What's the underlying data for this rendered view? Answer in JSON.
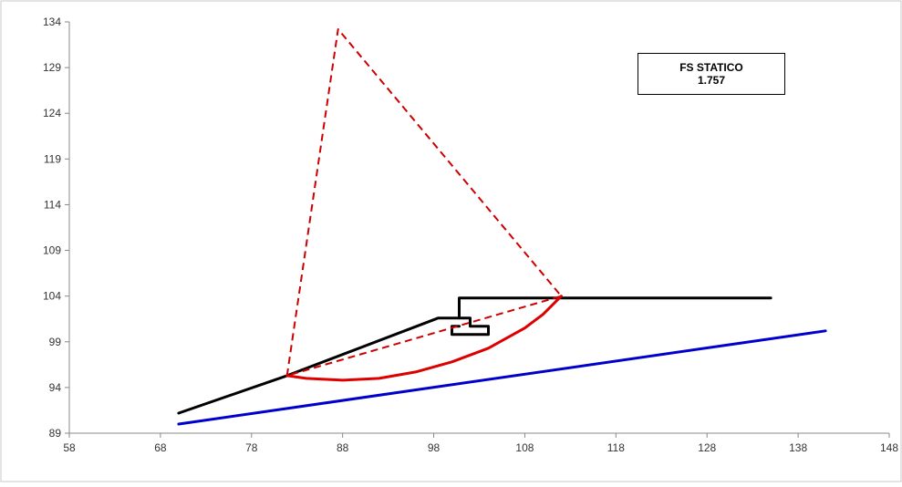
{
  "chart_data": {
    "type": "line",
    "title": "",
    "xlabel": "",
    "ylabel": "",
    "xlim": [
      58,
      148
    ],
    "ylim": [
      89,
      134
    ],
    "x_ticks": [
      58,
      68,
      78,
      88,
      98,
      108,
      118,
      128,
      138,
      148
    ],
    "y_ticks": [
      89,
      94,
      99,
      104,
      109,
      114,
      119,
      124,
      129,
      134
    ],
    "grid": false,
    "legend": "none",
    "annotation": {
      "line1": "FS  STATICO",
      "line2": "1.757"
    },
    "series": [
      {
        "color": "#0000cc",
        "style": "solid",
        "points": [
          [
            70,
            90.0
          ],
          [
            141,
            100.2
          ]
        ]
      },
      {
        "color": "#000000",
        "style": "solid",
        "points": [
          [
            70,
            91.2
          ],
          [
            81.9,
            95.3
          ],
          [
            98.5,
            101.6
          ],
          [
            100.8,
            101.6
          ],
          [
            100.8,
            103.8
          ],
          [
            135,
            103.8
          ]
        ]
      },
      {
        "color": "#000000",
        "style": "solid",
        "points": [
          [
            100.8,
            101.6
          ],
          [
            102,
            101.6
          ],
          [
            102,
            100.7
          ],
          [
            104,
            100.7
          ],
          [
            104,
            99.8
          ],
          [
            100,
            99.8
          ],
          [
            100,
            100.7
          ],
          [
            100.8,
            100.7
          ]
        ]
      },
      {
        "color": "#cc0000",
        "style": "dashed",
        "points": [
          [
            81.9,
            95.3
          ],
          [
            87.5,
            133.2
          ],
          [
            112,
            104.0
          ],
          [
            81.9,
            95.3
          ]
        ]
      },
      {
        "color": "#dd0000",
        "style": "solid",
        "points": [
          [
            81.9,
            95.3
          ],
          [
            84,
            95.0
          ],
          [
            88,
            94.8
          ],
          [
            92,
            95.0
          ],
          [
            96,
            95.7
          ],
          [
            100,
            96.8
          ],
          [
            104,
            98.3
          ],
          [
            108,
            100.5
          ],
          [
            110,
            102.0
          ],
          [
            112,
            104.0
          ]
        ]
      }
    ]
  }
}
